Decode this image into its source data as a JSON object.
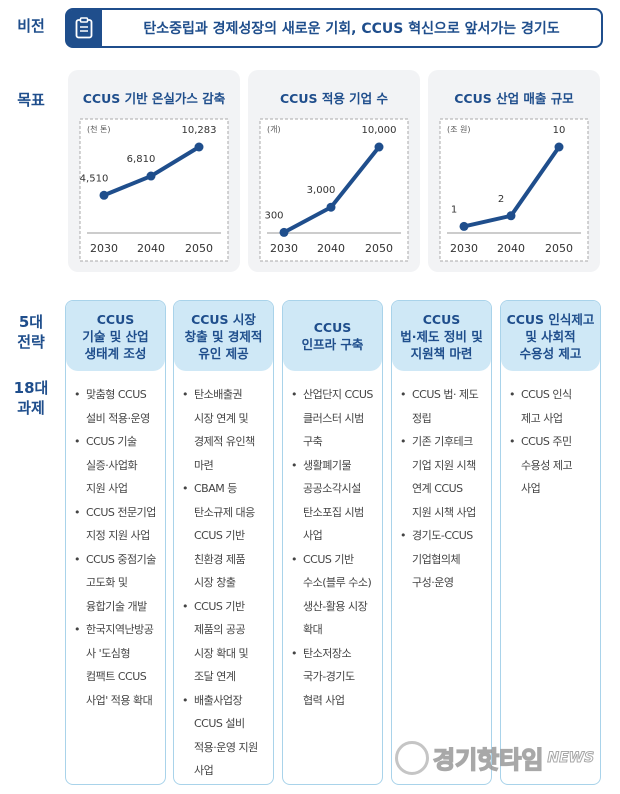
{
  "labels": {
    "vision": "비전",
    "goals": "목표",
    "strategies": "5대\n전략",
    "tasks": "18대\n과제"
  },
  "vision": {
    "icon": "clipboard-icon",
    "text": "탄소중립과 경제성장의 새로운 기회, CCUS 혁신으로 앞서가는 경기도"
  },
  "colors": {
    "primary": "#1f4e8c",
    "header_bg": "#cfe8f6",
    "border": "#a9d3ea"
  },
  "chart_data": [
    {
      "type": "line",
      "title": "CCUS 기반 온실가스 감축",
      "unit": "(천 톤)",
      "categories": [
        "2030",
        "2040",
        "2050"
      ],
      "values": [
        4510,
        6810,
        10283
      ],
      "labels": [
        "4,510",
        "6,810",
        "10,283"
      ]
    },
    {
      "type": "line",
      "title": "CCUS 적용 기업 수",
      "unit": "(개)",
      "categories": [
        "2030",
        "2040",
        "2050"
      ],
      "values": [
        300,
        3000,
        10000
      ],
      "labels": [
        "300",
        "3,000",
        "10,000"
      ]
    },
    {
      "type": "line",
      "title": "CCUS 산업 매출 규모",
      "unit": "(조 원)",
      "categories": [
        "2030",
        "2040",
        "2050"
      ],
      "values": [
        1,
        2,
        10
      ],
      "labels": [
        "1",
        "2",
        "10"
      ]
    }
  ],
  "strategies": [
    {
      "title": "CCUS\n기술 및 산업\n생태계 조성",
      "tasks": [
        "맞춤형 CCUS\n설비 적용·운영",
        "CCUS 기술\n실증·사업화\n지원 사업",
        "CCUS 전문기업\n지정 지원 사업",
        "CCUS 중점기술\n고도화 및\n융합기술 개발",
        "한국지역난방공\n사 '도심형\n컴팩트 CCUS\n사업' 적용 확대"
      ]
    },
    {
      "title": "CCUS 시장\n창출 및 경제적\n유인 제공",
      "tasks": [
        "탄소배출권\n시장 연계 및\n경제적 유인책\n마련",
        "CBAM 등\n탄소규제 대응\nCCUS 기반\n친환경 제품\n시장 창출",
        "CCUS 기반\n제품의 공공\n시장 확대 및\n조달 연계",
        "배출사업장\nCCUS 설비\n적용·운영 지원\n사업"
      ]
    },
    {
      "title": "CCUS\n인프라 구축",
      "tasks": [
        "산업단지 CCUS\n클러스터 시범\n구축",
        "생활폐기물\n공공소각시설\n탄소포집 시범\n사업",
        "CCUS 기반\n수소(블루 수소)\n생산-활용 시장\n확대",
        "탄소저장소\n국가-경기도\n협력 사업"
      ]
    },
    {
      "title": "CCUS\n법·제도 정비 및\n지원책 마련",
      "tasks": [
        "CCUS 법· 제도\n정립",
        "기존 기후테크\n기업 지원 시책\n연계 CCUS\n지원 시책 사업",
        "경기도-CCUS\n기업협의체\n구성·운영"
      ]
    },
    {
      "title": "CCUS 인식제고\n및 사회적\n수용성 제고",
      "tasks": [
        "CCUS 인식\n제고 사업",
        "CCUS 주민\n수용성 제고\n사업"
      ]
    }
  ],
  "watermark": {
    "logo_text": "경기핫타임NEWS"
  }
}
